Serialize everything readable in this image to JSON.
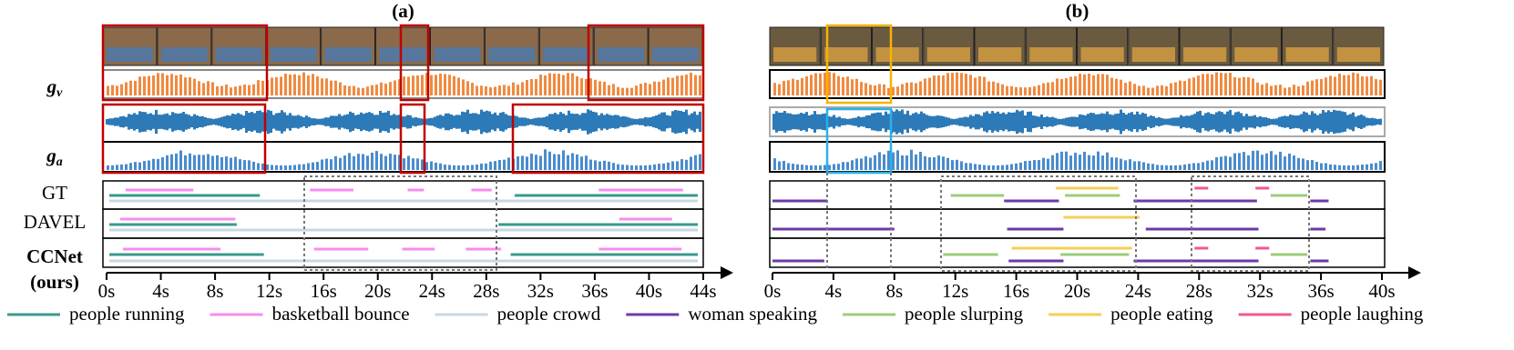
{
  "panels": [
    {
      "title": "(a)",
      "xlim": [
        0,
        44
      ],
      "xticks": [
        {
          "value": 0,
          "label": "0s"
        },
        {
          "value": 4,
          "label": "4s"
        },
        {
          "value": 8,
          "label": "8s"
        },
        {
          "value": 12,
          "label": "12s"
        },
        {
          "value": 16,
          "label": "16s"
        },
        {
          "value": 20,
          "label": "20s"
        },
        {
          "value": 24,
          "label": "24s"
        },
        {
          "value": 28,
          "label": "28s"
        },
        {
          "value": 32,
          "label": "32s"
        },
        {
          "value": 36,
          "label": "36s"
        },
        {
          "value": 40,
          "label": "40s"
        },
        {
          "value": 44,
          "label": "44s"
        }
      ],
      "rows": [
        {
          "segments": [
            {
              "event": 1,
              "start": 1.4,
              "end": 6.4
            },
            {
              "event": 1,
              "start": 15.0,
              "end": 18.2
            },
            {
              "event": 1,
              "start": 22.2,
              "end": 23.4
            },
            {
              "event": 1,
              "start": 26.9,
              "end": 28.4
            },
            {
              "event": 1,
              "start": 36.3,
              "end": 42.5
            },
            {
              "event": 0,
              "start": 0.2,
              "end": 11.3
            },
            {
              "event": 0,
              "start": 30.1,
              "end": 43.6
            },
            {
              "event": 2,
              "start": 0.2,
              "end": 43.6
            }
          ]
        },
        {
          "segments": [
            {
              "event": 1,
              "start": 1.0,
              "end": 9.5
            },
            {
              "event": 1,
              "start": 37.8,
              "end": 41.7
            },
            {
              "event": 0,
              "start": 0.2,
              "end": 9.6
            },
            {
              "event": 0,
              "start": 28.9,
              "end": 43.6
            },
            {
              "event": 2,
              "start": 0.2,
              "end": 43.6
            }
          ]
        },
        {
          "segments": [
            {
              "event": 1,
              "start": 1.2,
              "end": 8.4
            },
            {
              "event": 1,
              "start": 15.3,
              "end": 19.3
            },
            {
              "event": 1,
              "start": 21.8,
              "end": 24.2
            },
            {
              "event": 1,
              "start": 26.5,
              "end": 29.1
            },
            {
              "event": 1,
              "start": 36.3,
              "end": 42.4
            },
            {
              "event": 0,
              "start": 0.2,
              "end": 11.6
            },
            {
              "event": 0,
              "start": 29.8,
              "end": 43.6
            },
            {
              "event": 2,
              "start": 0.2,
              "end": 43.6
            }
          ]
        }
      ]
    },
    {
      "title": "(b)",
      "xlim": [
        0,
        40
      ],
      "xticks": [
        {
          "value": 0,
          "label": "0s"
        },
        {
          "value": 4,
          "label": "4s"
        },
        {
          "value": 8,
          "label": "8s"
        },
        {
          "value": 12,
          "label": "12s"
        },
        {
          "value": 16,
          "label": "16s"
        },
        {
          "value": 20,
          "label": "20s"
        },
        {
          "value": 24,
          "label": "24s"
        },
        {
          "value": 28,
          "label": "28s"
        },
        {
          "value": 32,
          "label": "32s"
        },
        {
          "value": 36,
          "label": "36s"
        },
        {
          "value": 40,
          "label": "40s"
        }
      ],
      "rows": [
        {
          "segments": [
            {
              "event": 3,
              "start": 0,
              "end": 3.6
            },
            {
              "event": 3,
              "start": 15.2,
              "end": 18.8
            },
            {
              "event": 3,
              "start": 23.7,
              "end": 31.8
            },
            {
              "event": 3,
              "start": 35.3,
              "end": 36.5
            },
            {
              "event": 4,
              "start": 11.7,
              "end": 15.2
            },
            {
              "event": 4,
              "start": 19.2,
              "end": 22.8
            },
            {
              "event": 4,
              "start": 32.7,
              "end": 35.1
            },
            {
              "event": 5,
              "start": 18.6,
              "end": 22.7
            },
            {
              "event": 6,
              "start": 27.7,
              "end": 28.6
            },
            {
              "event": 6,
              "start": 31.7,
              "end": 32.6
            }
          ]
        },
        {
          "segments": [
            {
              "event": 3,
              "start": 0,
              "end": 8.0
            },
            {
              "event": 3,
              "start": 15.4,
              "end": 19.1
            },
            {
              "event": 3,
              "start": 24.5,
              "end": 31.9
            },
            {
              "event": 3,
              "start": 35.3,
              "end": 36.3
            },
            {
              "event": 5,
              "start": 19.1,
              "end": 24.1
            }
          ]
        },
        {
          "segments": [
            {
              "event": 3,
              "start": 0,
              "end": 3.4
            },
            {
              "event": 3,
              "start": 15.5,
              "end": 19.1
            },
            {
              "event": 3,
              "start": 23.7,
              "end": 31.9
            },
            {
              "event": 3,
              "start": 35.3,
              "end": 36.5
            },
            {
              "event": 4,
              "start": 11.2,
              "end": 14.8
            },
            {
              "event": 4,
              "start": 18.9,
              "end": 23.4
            },
            {
              "event": 4,
              "start": 32.7,
              "end": 35.1
            },
            {
              "event": 5,
              "start": 15.7,
              "end": 23.6
            },
            {
              "event": 6,
              "start": 27.7,
              "end": 28.6
            },
            {
              "event": 6,
              "start": 31.7,
              "end": 32.6
            }
          ]
        }
      ]
    }
  ],
  "feature_labels": [
    {
      "base": "g",
      "sub": "v"
    },
    {
      "base": "g",
      "sub": "a"
    }
  ],
  "methods": [
    {
      "name": "GT"
    },
    {
      "name": "DAVEL"
    },
    {
      "name": "CCNet",
      "note": "(ours)"
    }
  ],
  "legend": [
    {
      "name": "people running",
      "color": "#3a9a8c"
    },
    {
      "name": "basketball bounce",
      "color": "#f58cf0"
    },
    {
      "name": "people crowd",
      "color": "#c8d8e4"
    },
    {
      "name": "woman speaking",
      "color": "#6a3aa8"
    },
    {
      "name": "people slurping",
      "color": "#9ccc7a"
    },
    {
      "name": "people eating",
      "color": "#f5cf55"
    },
    {
      "name": "people laughing",
      "color": "#ef5a8a"
    }
  ]
}
